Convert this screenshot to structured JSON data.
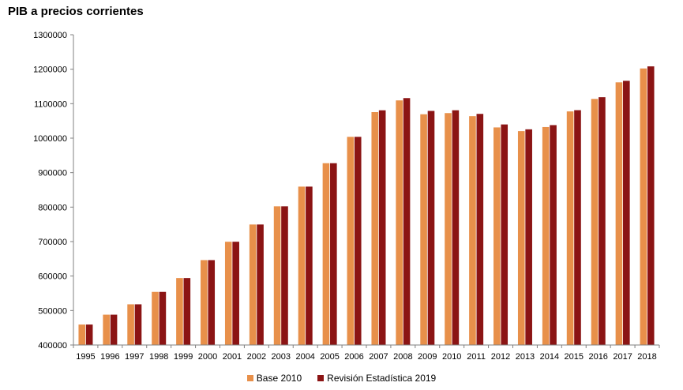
{
  "chart_data": {
    "type": "bar",
    "title": "PIB a precios corrientes",
    "xlabel": "",
    "ylabel": "",
    "categories": [
      "1995",
      "1996",
      "1997",
      "1998",
      "1999",
      "2000",
      "2001",
      "2002",
      "2003",
      "2004",
      "2005",
      "2006",
      "2007",
      "2008",
      "2009",
      "2010",
      "2011",
      "2012",
      "2013",
      "2014",
      "2015",
      "2016",
      "2017",
      "2018"
    ],
    "series": [
      {
        "name": "Base 2010",
        "color": "#E8904A",
        "values": [
          459337,
          487992,
          518049,
          554042,
          594316,
          646250,
          699528,
          749552,
          802266,
          859437,
          927357,
          1003823,
          1075539,
          1109541,
          1069323,
          1072709,
          1063763,
          1031104,
          1020348,
          1032158,
          1077590,
          1113840,
          1161878,
          1202193
        ]
      },
      {
        "name": "Revisión Estadística 2019",
        "color": "#8B1414",
        "values": [
          459337,
          487992,
          518049,
          554042,
          594316,
          646250,
          699528,
          749552,
          802266,
          859437,
          927357,
          1003823,
          1080807,
          1116207,
          1079034,
          1080913,
          1070413,
          1039758,
          1025634,
          1037820,
          1081190,
          1118743,
          1166319,
          1208248
        ]
      }
    ],
    "ylim": [
      400000,
      1300000
    ],
    "yticks": [
      400000,
      500000,
      600000,
      700000,
      800000,
      900000,
      1000000,
      1100000,
      1200000,
      1300000
    ],
    "grid": false,
    "legend": "bottom"
  }
}
